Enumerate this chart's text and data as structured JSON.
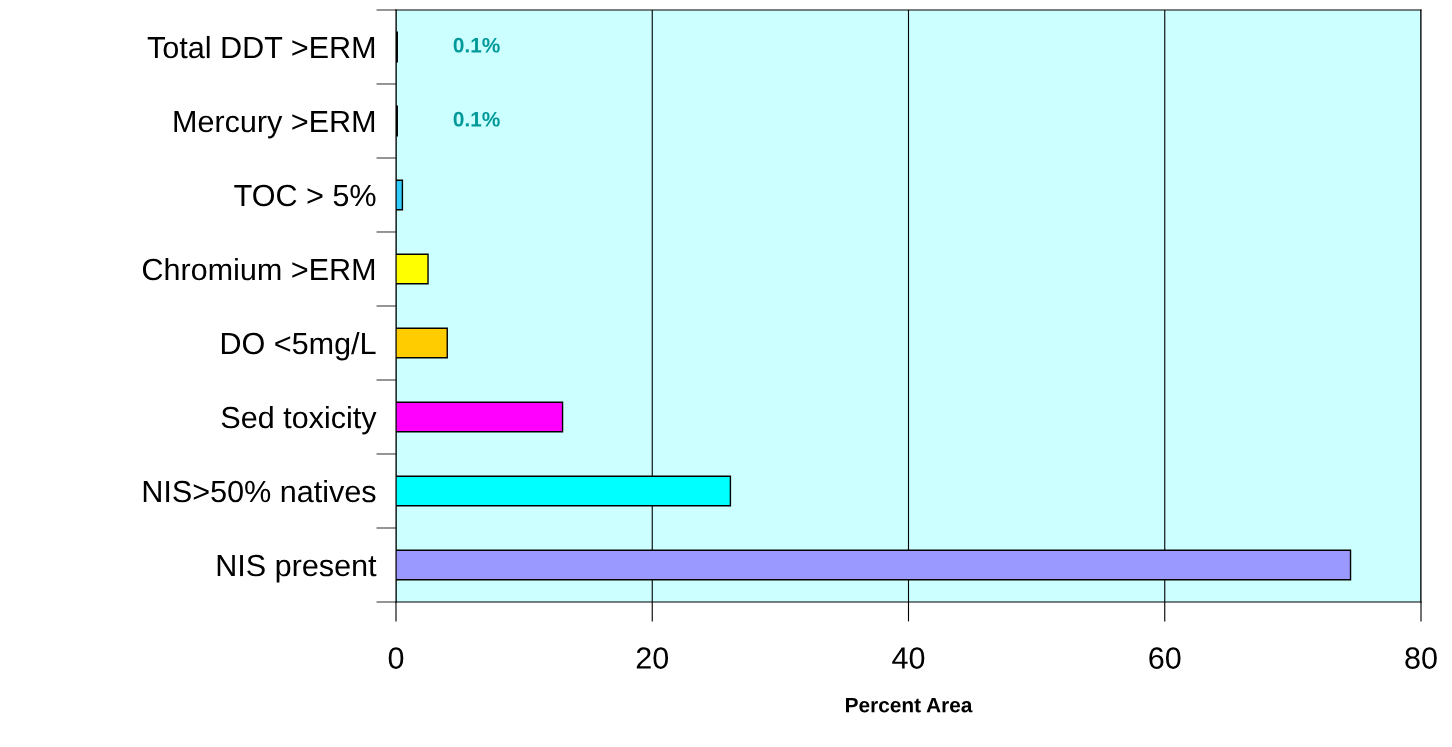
{
  "chart_data": {
    "type": "bar",
    "orientation": "horizontal",
    "xlabel": "Percent Area",
    "categories": [
      "Total DDT >ERM",
      "Mercury >ERM",
      "TOC > 5%",
      "Chromium >ERM",
      "DO <5mg/L",
      "Sed toxicity",
      "NIS>50% natives",
      "NIS present"
    ],
    "values": [
      0.1,
      0.1,
      0.5,
      2.5,
      4.0,
      13.0,
      26.1,
      74.5
    ],
    "colors": [
      "#33ccff",
      "#33ccff",
      "#33ccff",
      "#ffff00",
      "#ffcc00",
      "#ff00ff",
      "#00ffff",
      "#9999ff"
    ],
    "value_labels": [
      "0.1%",
      "0.1%",
      null,
      null,
      null,
      null,
      null,
      null
    ],
    "xlim": [
      0,
      80
    ],
    "xticks": [
      0,
      20,
      40,
      60,
      80
    ],
    "grid": "x"
  }
}
